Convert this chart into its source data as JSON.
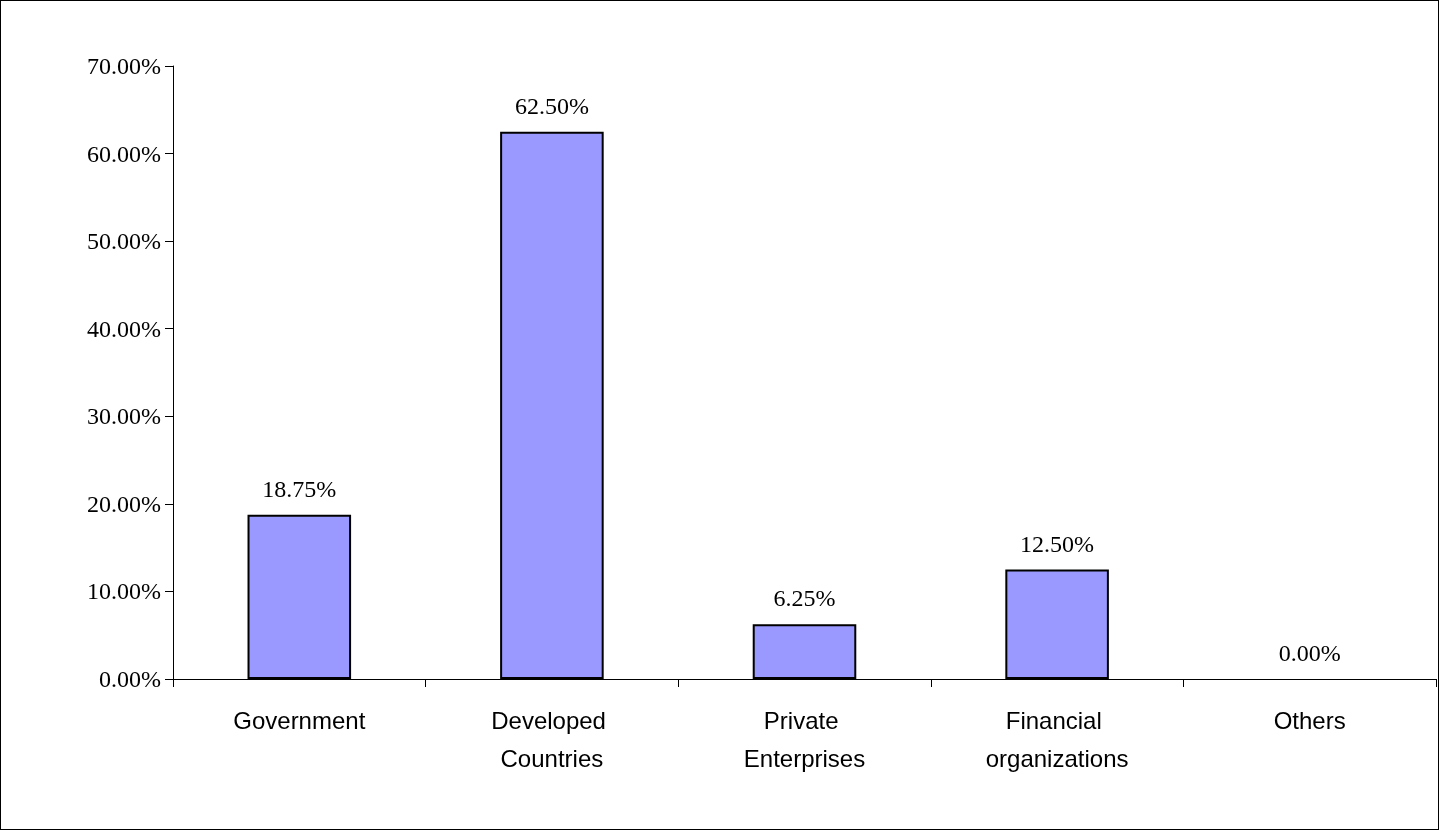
{
  "chart_data": {
    "type": "bar",
    "categories": [
      "Government",
      "Developed Countries",
      "Private Enterprises",
      "Financial organizations",
      "Others"
    ],
    "values": [
      18.75,
      62.5,
      6.25,
      12.5,
      0
    ],
    "value_labels": [
      "18.75%",
      "62.50%",
      "6.25%",
      "12.50%",
      "0.00%"
    ],
    "color": "#9999ff",
    "ylim": [
      0,
      70
    ],
    "yticks": [
      {
        "value": 0,
        "label": "0.00%"
      },
      {
        "value": 10,
        "label": "10.00%"
      },
      {
        "value": 20,
        "label": "20.00%"
      },
      {
        "value": 30,
        "label": "30.00%"
      },
      {
        "value": 40,
        "label": "40.00%"
      },
      {
        "value": 50,
        "label": "50.00%"
      },
      {
        "value": 60,
        "label": "60.00%"
      },
      {
        "value": 70,
        "label": "70.00%"
      }
    ],
    "grid": false
  }
}
